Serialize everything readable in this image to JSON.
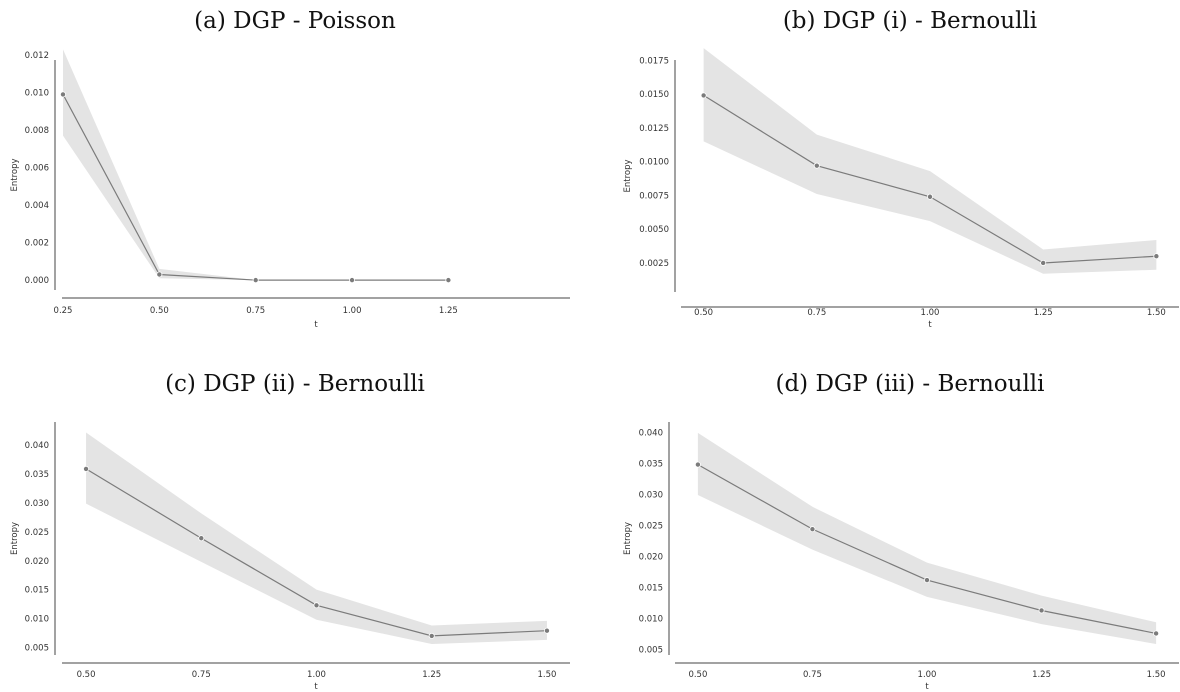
{
  "chart_data": [
    {
      "type": "line",
      "title": "(a) DGP - Poisson",
      "xlabel": "t",
      "ylabel": "Entropy",
      "xlim": [
        0.25,
        1.55
      ],
      "ylim": [
        -0.0009,
        0.0128
      ],
      "xticks": [
        0.25,
        0.5,
        0.75,
        1.0,
        1.25
      ],
      "xtick_labels": [
        "0.25",
        "0.50",
        "0.75",
        "1.00",
        "1.25"
      ],
      "yticks": [
        0.0,
        0.002,
        0.004,
        0.006,
        0.008,
        0.01,
        0.012
      ],
      "ytick_labels": [
        "0.000",
        "0.002",
        "0.004",
        "0.006",
        "0.008",
        "0.010",
        "0.012"
      ],
      "grid": false,
      "series": [
        {
          "x": [
            0.25,
            0.5,
            0.75,
            1.0,
            1.25
          ],
          "y": [
            0.0099,
            0.0003,
            0.0,
            0.0,
            0.0
          ],
          "y_lower": [
            0.0077,
            0.0001,
            0.0,
            0.0,
            0.0
          ],
          "y_upper": [
            0.0123,
            0.0006,
            0.0,
            0.0,
            0.0
          ]
        }
      ]
    },
    {
      "type": "line",
      "title": "(b) DGP (i) - Bernoulli",
      "xlabel": "t",
      "ylabel": "Entropy",
      "xlim": [
        0.45,
        1.55
      ],
      "ylim": [
        0.0005,
        0.019
      ],
      "xticks": [
        0.5,
        0.75,
        1.0,
        1.25,
        1.5
      ],
      "xtick_labels": [
        "0.50",
        "0.75",
        "1.00",
        "1.25",
        "1.50"
      ],
      "yticks": [
        0.0025,
        0.005,
        0.0075,
        0.01,
        0.0125,
        0.015,
        0.0175
      ],
      "ytick_labels": [
        "0.0025",
        "0.0050",
        "0.0075",
        "0.0100",
        "0.0125",
        "0.0150",
        "0.0175"
      ],
      "grid": false,
      "series": [
        {
          "x": [
            0.5,
            0.75,
            1.0,
            1.25,
            1.5
          ],
          "y": [
            0.0149,
            0.0097,
            0.0074,
            0.0025,
            0.003
          ],
          "y_lower": [
            0.0115,
            0.0076,
            0.0056,
            0.0017,
            0.002
          ],
          "y_upper": [
            0.0184,
            0.012,
            0.0093,
            0.0035,
            0.0042
          ]
        }
      ]
    },
    {
      "type": "line",
      "title": "(c) DGP (ii) - Bernoulli",
      "xlabel": "t",
      "ylabel": "Entropy",
      "xlim": [
        0.45,
        1.55
      ],
      "ylim": [
        0.003,
        0.0435
      ],
      "xticks": [
        0.5,
        0.75,
        1.0,
        1.25,
        1.5
      ],
      "xtick_labels": [
        "0.50",
        "0.75",
        "1.00",
        "1.25",
        "1.50"
      ],
      "yticks": [
        0.005,
        0.01,
        0.015,
        0.02,
        0.025,
        0.03,
        0.035,
        0.04
      ],
      "ytick_labels": [
        "0.005",
        "0.010",
        "0.015",
        "0.020",
        "0.025",
        "0.030",
        "0.035",
        "0.040"
      ],
      "grid": false,
      "series": [
        {
          "x": [
            0.5,
            0.75,
            1.0,
            1.25,
            1.5
          ],
          "y": [
            0.0359,
            0.0239,
            0.0123,
            0.007,
            0.0079
          ],
          "y_lower": [
            0.0299,
            0.0198,
            0.0098,
            0.0056,
            0.0063
          ],
          "y_upper": [
            0.0422,
            0.0282,
            0.015,
            0.0088,
            0.0096
          ]
        }
      ]
    },
    {
      "type": "line",
      "title": "(d) DGP (iii) - Bernoulli",
      "xlabel": "t",
      "ylabel": "Entropy",
      "xlim": [
        0.45,
        1.55
      ],
      "ylim": [
        0.003,
        0.0415
      ],
      "xticks": [
        0.5,
        0.75,
        1.0,
        1.25,
        1.5
      ],
      "xtick_labels": [
        "0.50",
        "0.75",
        "1.00",
        "1.25",
        "1.50"
      ],
      "yticks": [
        0.005,
        0.01,
        0.015,
        0.02,
        0.025,
        0.03,
        0.035,
        0.04
      ],
      "ytick_labels": [
        "0.005",
        "0.010",
        "0.015",
        "0.020",
        "0.025",
        "0.030",
        "0.035",
        "0.040"
      ],
      "grid": false,
      "series": [
        {
          "x": [
            0.5,
            0.75,
            1.0,
            1.25,
            1.5
          ],
          "y": [
            0.0348,
            0.0244,
            0.0162,
            0.0113,
            0.0076
          ],
          "y_lower": [
            0.0299,
            0.0211,
            0.0135,
            0.0091,
            0.0059
          ],
          "y_upper": [
            0.0399,
            0.028,
            0.019,
            0.0137,
            0.0094
          ]
        }
      ]
    }
  ]
}
